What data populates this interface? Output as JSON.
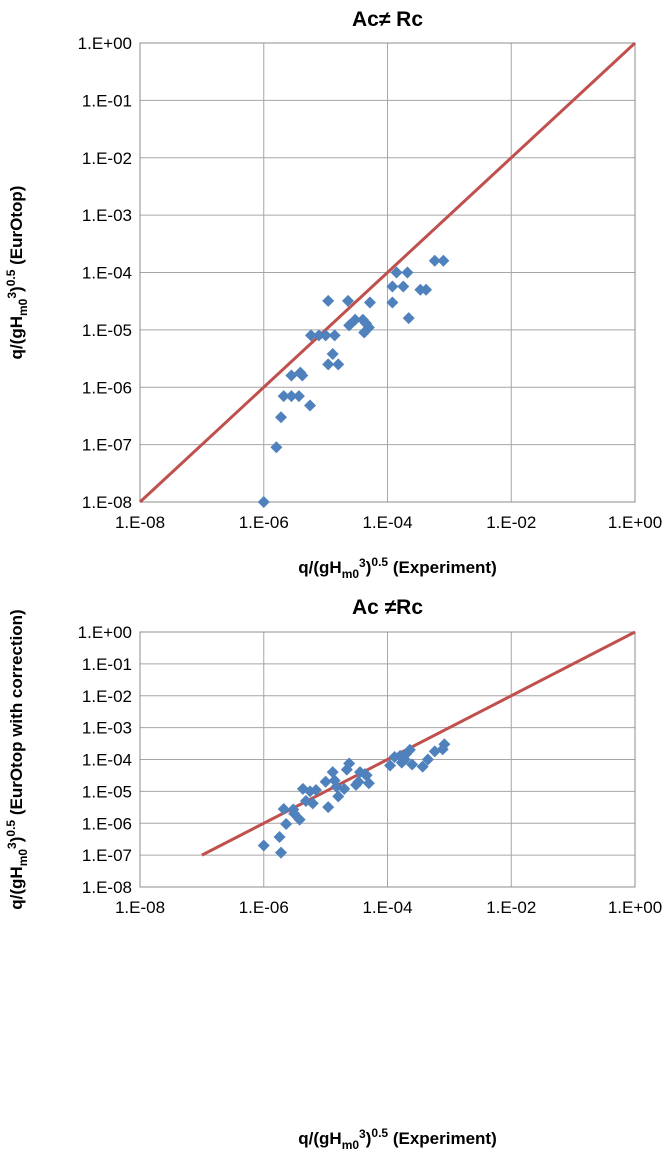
{
  "chart_data": [
    {
      "type": "scatter",
      "title": "Ac≠ Rc",
      "xlabel": "q/(gHm0^3)^0.5 (Experiment)",
      "ylabel": "q/(gHm0^3)^0.5 (EurOtop)",
      "xlabel_parts": {
        "prefix": "q/(gH",
        "sub": "m0",
        "sup1": "3",
        "mid": ")",
        "sup2": "0.5",
        "suffix": " (Experiment)"
      },
      "ylabel_parts": {
        "prefix": "q/(gH",
        "sub": "m0",
        "sup1": "3",
        "mid": ")",
        "sup2": "0.5",
        "suffix": " (EurOtop)"
      },
      "x_scale": "log",
      "y_scale": "log",
      "xlim": [
        1e-08,
        1
      ],
      "ylim": [
        1e-08,
        1
      ],
      "x_ticks": [
        {
          "value": 1e-08,
          "label": "1.E-08"
        },
        {
          "value": 1e-06,
          "label": "1.E-06"
        },
        {
          "value": 0.0001,
          "label": "1.E-04"
        },
        {
          "value": 0.01,
          "label": "1.E-02"
        },
        {
          "value": 1,
          "label": "1.E+00"
        }
      ],
      "y_ticks": [
        {
          "value": 1,
          "label": "1.E+00"
        },
        {
          "value": 0.1,
          "label": "1.E-01"
        },
        {
          "value": 0.01,
          "label": "1.E-02"
        },
        {
          "value": 0.001,
          "label": "1.E-03"
        },
        {
          "value": 0.0001,
          "label": "1.E-04"
        },
        {
          "value": 1e-05,
          "label": "1.E-05"
        },
        {
          "value": 1e-06,
          "label": "1.E-06"
        },
        {
          "value": 1e-07,
          "label": "1.E-07"
        },
        {
          "value": 1e-08,
          "label": "1.E-08"
        }
      ],
      "grid": true,
      "series": [
        {
          "marker": "diamond",
          "color": "#4f81bd",
          "points": [
            [
              1e-06,
              1e-08
            ],
            [
              1.6e-06,
              9e-08
            ],
            [
              1.9e-06,
              3e-07
            ],
            [
              2.1e-06,
              7e-07
            ],
            [
              2.8e-06,
              7e-07
            ],
            [
              3.7e-06,
              7e-07
            ],
            [
              2.8e-06,
              1.6e-06
            ],
            [
              3.9e-06,
              1.8e-06
            ],
            [
              4.2e-06,
              1.6e-06
            ],
            [
              5.6e-06,
              4.8e-07
            ],
            [
              5.8e-06,
              8e-06
            ],
            [
              7.8e-06,
              8e-06
            ],
            [
              1e-05,
              8e-06
            ],
            [
              1.1e-05,
              2.5e-06
            ],
            [
              1.3e-05,
              3.8e-06
            ],
            [
              1.4e-05,
              8e-06
            ],
            [
              1.6e-05,
              2.5e-06
            ],
            [
              1.1e-05,
              3.2e-05
            ],
            [
              2.3e-05,
              3.2e-05
            ],
            [
              2.4e-05,
              1.2e-05
            ],
            [
              3e-05,
              1.5e-05
            ],
            [
              4e-05,
              1.5e-05
            ],
            [
              4.2e-05,
              9e-06
            ],
            [
              4.5e-05,
              1.3e-05
            ],
            [
              5e-05,
              1.1e-05
            ],
            [
              5.2e-05,
              3e-05
            ],
            [
              0.00012,
              3e-05
            ],
            [
              0.00012,
              5.7e-05
            ],
            [
              0.00014,
              0.0001
            ],
            [
              0.00018,
              5.7e-05
            ],
            [
              0.00021,
              0.0001
            ],
            [
              0.00022,
              1.6e-05
            ],
            [
              0.00034,
              5e-05
            ],
            [
              0.00042,
              5e-05
            ],
            [
              0.00058,
              0.00016
            ],
            [
              0.0008,
              0.00016
            ]
          ]
        },
        {
          "type": "line",
          "color": "#c0504d",
          "points": [
            [
              1e-08,
              1e-08
            ],
            [
              1,
              1
            ]
          ]
        }
      ]
    },
    {
      "type": "scatter",
      "title": "Ac ≠Rc",
      "xlabel": "q/(gHm0^3)^0.5 (Experiment)",
      "ylabel": "q/(gHm0^3)^0.5 (EurOtop with correction)",
      "xlabel_parts": {
        "prefix": "q/(gH",
        "sub": "m0",
        "sup1": "3",
        "mid": ")",
        "sup2": "0.5",
        "suffix": " (Experiment)"
      },
      "ylabel_parts": {
        "prefix": "q/(gH",
        "sub": "m0",
        "sup1": "3",
        "mid": ")",
        "sup2": "0.5",
        "suffix": " (EurOtop with correction)"
      },
      "x_scale": "log",
      "y_scale": "log",
      "xlim": [
        1e-08,
        1
      ],
      "ylim": [
        1e-08,
        1
      ],
      "x_ticks": [
        {
          "value": 1e-08,
          "label": "1.E-08"
        },
        {
          "value": 1e-06,
          "label": "1.E-06"
        },
        {
          "value": 0.0001,
          "label": "1.E-04"
        },
        {
          "value": 0.01,
          "label": "1.E-02"
        },
        {
          "value": 1,
          "label": "1.E+00"
        }
      ],
      "y_ticks": [
        {
          "value": 1,
          "label": "1.E+00"
        },
        {
          "value": 0.1,
          "label": "1.E-01"
        },
        {
          "value": 0.01,
          "label": "1.E-02"
        },
        {
          "value": 0.001,
          "label": "1.E-03"
        },
        {
          "value": 0.0001,
          "label": "1.E-04"
        },
        {
          "value": 1e-05,
          "label": "1.E-05"
        },
        {
          "value": 1e-06,
          "label": "1.E-06"
        },
        {
          "value": 1e-07,
          "label": "1.E-07"
        },
        {
          "value": 1e-08,
          "label": "1.E-08"
        }
      ],
      "grid": true,
      "series": [
        {
          "marker": "diamond",
          "color": "#4f81bd",
          "points": [
            [
              1e-06,
              2e-07
            ],
            [
              1.8e-06,
              3.7e-07
            ],
            [
              1.9e-06,
              1.2e-07
            ],
            [
              2.1e-06,
              2.8e-06
            ],
            [
              2.3e-06,
              9.5e-07
            ],
            [
              3e-06,
              2.7e-06
            ],
            [
              3.1e-06,
              2e-06
            ],
            [
              3.8e-06,
              1.3e-06
            ],
            [
              4.3e-06,
              1.2e-05
            ],
            [
              4.8e-06,
              5e-06
            ],
            [
              5.6e-06,
              1e-05
            ],
            [
              6.2e-06,
              4.2e-06
            ],
            [
              7e-06,
              1.1e-05
            ],
            [
              1e-05,
              2e-05
            ],
            [
              1.1e-05,
              3.2e-06
            ],
            [
              1.3e-05,
              4e-05
            ],
            [
              1.4e-05,
              2.2e-05
            ],
            [
              1.5e-05,
              1.4e-05
            ],
            [
              1.6e-05,
              7e-06
            ],
            [
              2e-05,
              1.2e-05
            ],
            [
              2.2e-05,
              4.8e-05
            ],
            [
              2.4e-05,
              7.5e-05
            ],
            [
              3.1e-05,
              1.6e-05
            ],
            [
              3.4e-05,
              2e-05
            ],
            [
              3.6e-05,
              4e-05
            ],
            [
              4.3e-05,
              3.5e-05
            ],
            [
              4.6e-05,
              3.2e-05
            ],
            [
              5e-05,
              1.8e-05
            ],
            [
              0.00011,
              6.5e-05
            ],
            [
              0.00013,
              0.00012
            ],
            [
              0.00016,
              0.00013
            ],
            [
              0.00017,
              8e-05
            ],
            [
              0.00019,
              0.0001
            ],
            [
              0.0002,
              0.00015
            ],
            [
              0.00023,
              0.0002
            ],
            [
              0.00025,
              7e-05
            ],
            [
              0.00037,
              6e-05
            ],
            [
              0.00045,
              0.0001
            ],
            [
              0.00058,
              0.00018
            ],
            [
              0.00078,
              0.00021
            ],
            [
              0.00083,
              0.0003
            ]
          ]
        },
        {
          "type": "line",
          "color": "#c0504d",
          "points": [
            [
              1e-07,
              1e-07
            ],
            [
              1,
              1
            ]
          ]
        }
      ]
    }
  ]
}
